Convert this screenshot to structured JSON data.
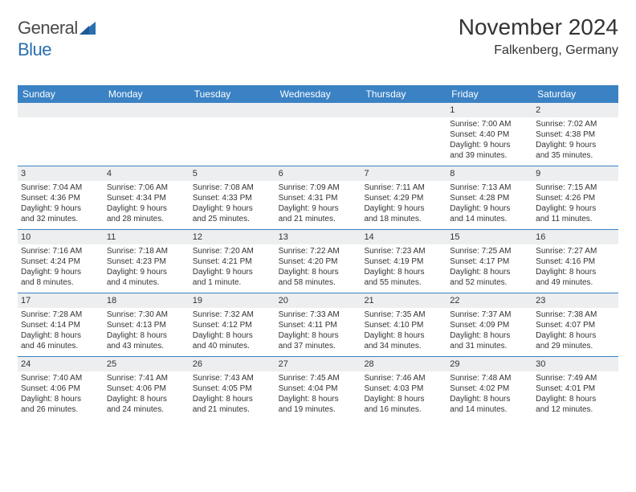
{
  "logo": {
    "text1": "General",
    "text2": "Blue"
  },
  "header": {
    "month": "November 2024",
    "location": "Falkenberg, Germany"
  },
  "colors": {
    "header_bg": "#3b82c4",
    "header_text": "#ffffff",
    "daynum_bg": "#eceeef",
    "week_border": "#3b82c4",
    "body_text": "#333333",
    "logo_gray": "#5a5a5a",
    "logo_blue": "#2a6fb0"
  },
  "font": {
    "title_size": 28,
    "location_size": 16,
    "dow_size": 12,
    "daynum_size": 11,
    "body_size": 10
  },
  "dow": [
    "Sunday",
    "Monday",
    "Tuesday",
    "Wednesday",
    "Thursday",
    "Friday",
    "Saturday"
  ],
  "weeks": [
    [
      null,
      null,
      null,
      null,
      null,
      {
        "n": "1",
        "sunrise": "Sunrise: 7:00 AM",
        "sunset": "Sunset: 4:40 PM",
        "day1": "Daylight: 9 hours",
        "day2": "and 39 minutes."
      },
      {
        "n": "2",
        "sunrise": "Sunrise: 7:02 AM",
        "sunset": "Sunset: 4:38 PM",
        "day1": "Daylight: 9 hours",
        "day2": "and 35 minutes."
      }
    ],
    [
      {
        "n": "3",
        "sunrise": "Sunrise: 7:04 AM",
        "sunset": "Sunset: 4:36 PM",
        "day1": "Daylight: 9 hours",
        "day2": "and 32 minutes."
      },
      {
        "n": "4",
        "sunrise": "Sunrise: 7:06 AM",
        "sunset": "Sunset: 4:34 PM",
        "day1": "Daylight: 9 hours",
        "day2": "and 28 minutes."
      },
      {
        "n": "5",
        "sunrise": "Sunrise: 7:08 AM",
        "sunset": "Sunset: 4:33 PM",
        "day1": "Daylight: 9 hours",
        "day2": "and 25 minutes."
      },
      {
        "n": "6",
        "sunrise": "Sunrise: 7:09 AM",
        "sunset": "Sunset: 4:31 PM",
        "day1": "Daylight: 9 hours",
        "day2": "and 21 minutes."
      },
      {
        "n": "7",
        "sunrise": "Sunrise: 7:11 AM",
        "sunset": "Sunset: 4:29 PM",
        "day1": "Daylight: 9 hours",
        "day2": "and 18 minutes."
      },
      {
        "n": "8",
        "sunrise": "Sunrise: 7:13 AM",
        "sunset": "Sunset: 4:28 PM",
        "day1": "Daylight: 9 hours",
        "day2": "and 14 minutes."
      },
      {
        "n": "9",
        "sunrise": "Sunrise: 7:15 AM",
        "sunset": "Sunset: 4:26 PM",
        "day1": "Daylight: 9 hours",
        "day2": "and 11 minutes."
      }
    ],
    [
      {
        "n": "10",
        "sunrise": "Sunrise: 7:16 AM",
        "sunset": "Sunset: 4:24 PM",
        "day1": "Daylight: 9 hours",
        "day2": "and 8 minutes."
      },
      {
        "n": "11",
        "sunrise": "Sunrise: 7:18 AM",
        "sunset": "Sunset: 4:23 PM",
        "day1": "Daylight: 9 hours",
        "day2": "and 4 minutes."
      },
      {
        "n": "12",
        "sunrise": "Sunrise: 7:20 AM",
        "sunset": "Sunset: 4:21 PM",
        "day1": "Daylight: 9 hours",
        "day2": "and 1 minute."
      },
      {
        "n": "13",
        "sunrise": "Sunrise: 7:22 AM",
        "sunset": "Sunset: 4:20 PM",
        "day1": "Daylight: 8 hours",
        "day2": "and 58 minutes."
      },
      {
        "n": "14",
        "sunrise": "Sunrise: 7:23 AM",
        "sunset": "Sunset: 4:19 PM",
        "day1": "Daylight: 8 hours",
        "day2": "and 55 minutes."
      },
      {
        "n": "15",
        "sunrise": "Sunrise: 7:25 AM",
        "sunset": "Sunset: 4:17 PM",
        "day1": "Daylight: 8 hours",
        "day2": "and 52 minutes."
      },
      {
        "n": "16",
        "sunrise": "Sunrise: 7:27 AM",
        "sunset": "Sunset: 4:16 PM",
        "day1": "Daylight: 8 hours",
        "day2": "and 49 minutes."
      }
    ],
    [
      {
        "n": "17",
        "sunrise": "Sunrise: 7:28 AM",
        "sunset": "Sunset: 4:14 PM",
        "day1": "Daylight: 8 hours",
        "day2": "and 46 minutes."
      },
      {
        "n": "18",
        "sunrise": "Sunrise: 7:30 AM",
        "sunset": "Sunset: 4:13 PM",
        "day1": "Daylight: 8 hours",
        "day2": "and 43 minutes."
      },
      {
        "n": "19",
        "sunrise": "Sunrise: 7:32 AM",
        "sunset": "Sunset: 4:12 PM",
        "day1": "Daylight: 8 hours",
        "day2": "and 40 minutes."
      },
      {
        "n": "20",
        "sunrise": "Sunrise: 7:33 AM",
        "sunset": "Sunset: 4:11 PM",
        "day1": "Daylight: 8 hours",
        "day2": "and 37 minutes."
      },
      {
        "n": "21",
        "sunrise": "Sunrise: 7:35 AM",
        "sunset": "Sunset: 4:10 PM",
        "day1": "Daylight: 8 hours",
        "day2": "and 34 minutes."
      },
      {
        "n": "22",
        "sunrise": "Sunrise: 7:37 AM",
        "sunset": "Sunset: 4:09 PM",
        "day1": "Daylight: 8 hours",
        "day2": "and 31 minutes."
      },
      {
        "n": "23",
        "sunrise": "Sunrise: 7:38 AM",
        "sunset": "Sunset: 4:07 PM",
        "day1": "Daylight: 8 hours",
        "day2": "and 29 minutes."
      }
    ],
    [
      {
        "n": "24",
        "sunrise": "Sunrise: 7:40 AM",
        "sunset": "Sunset: 4:06 PM",
        "day1": "Daylight: 8 hours",
        "day2": "and 26 minutes."
      },
      {
        "n": "25",
        "sunrise": "Sunrise: 7:41 AM",
        "sunset": "Sunset: 4:06 PM",
        "day1": "Daylight: 8 hours",
        "day2": "and 24 minutes."
      },
      {
        "n": "26",
        "sunrise": "Sunrise: 7:43 AM",
        "sunset": "Sunset: 4:05 PM",
        "day1": "Daylight: 8 hours",
        "day2": "and 21 minutes."
      },
      {
        "n": "27",
        "sunrise": "Sunrise: 7:45 AM",
        "sunset": "Sunset: 4:04 PM",
        "day1": "Daylight: 8 hours",
        "day2": "and 19 minutes."
      },
      {
        "n": "28",
        "sunrise": "Sunrise: 7:46 AM",
        "sunset": "Sunset: 4:03 PM",
        "day1": "Daylight: 8 hours",
        "day2": "and 16 minutes."
      },
      {
        "n": "29",
        "sunrise": "Sunrise: 7:48 AM",
        "sunset": "Sunset: 4:02 PM",
        "day1": "Daylight: 8 hours",
        "day2": "and 14 minutes."
      },
      {
        "n": "30",
        "sunrise": "Sunrise: 7:49 AM",
        "sunset": "Sunset: 4:01 PM",
        "day1": "Daylight: 8 hours",
        "day2": "and 12 minutes."
      }
    ]
  ]
}
